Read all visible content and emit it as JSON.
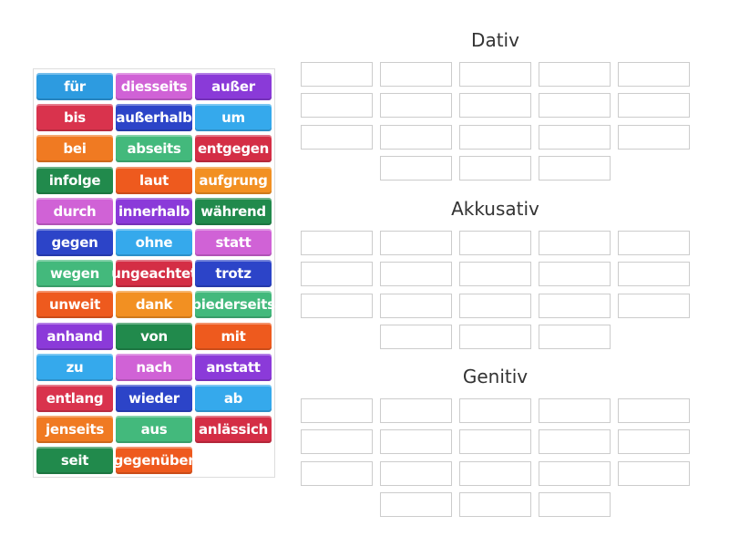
{
  "tiles": [
    {
      "word": "für",
      "color": "#2d9be0"
    },
    {
      "word": "diesseits",
      "color": "#d062d6"
    },
    {
      "word": "außer",
      "color": "#8a3ad8"
    },
    {
      "word": "bis",
      "color": "#d9334d"
    },
    {
      "word": "außerhalb",
      "color": "#2c44c8"
    },
    {
      "word": "um",
      "color": "#35a9ec"
    },
    {
      "word": "bei",
      "color": "#f07a22"
    },
    {
      "word": "abseits",
      "color": "#43b97c"
    },
    {
      "word": "entgegen",
      "color": "#d42e45"
    },
    {
      "word": "infolge",
      "color": "#218a4c"
    },
    {
      "word": "laut",
      "color": "#ee5a1e"
    },
    {
      "word": "aufgrung",
      "color": "#f29022"
    },
    {
      "word": "durch",
      "color": "#d062d6"
    },
    {
      "word": "innerhalb",
      "color": "#8b3ad9"
    },
    {
      "word": "während",
      "color": "#218a4c"
    },
    {
      "word": "gegen",
      "color": "#2c44c8"
    },
    {
      "word": "ohne",
      "color": "#35a9ec"
    },
    {
      "word": "statt",
      "color": "#d062d6"
    },
    {
      "word": "wegen",
      "color": "#43b97c"
    },
    {
      "word": "ungeachtet",
      "color": "#d42e45"
    },
    {
      "word": "trotz",
      "color": "#2c44c8"
    },
    {
      "word": "unweit",
      "color": "#ee5a1e"
    },
    {
      "word": "dank",
      "color": "#f29022"
    },
    {
      "word": "biederseits",
      "color": "#43b97c"
    },
    {
      "word": "anhand",
      "color": "#8b3ad9"
    },
    {
      "word": "von",
      "color": "#218a4c"
    },
    {
      "word": "mit",
      "color": "#ee5a1e"
    },
    {
      "word": "zu",
      "color": "#35a9ec"
    },
    {
      "word": "nach",
      "color": "#d062d6"
    },
    {
      "word": "anstatt",
      "color": "#8b3ad9"
    },
    {
      "word": "entlang",
      "color": "#d9334d"
    },
    {
      "word": "wieder",
      "color": "#2c44c8"
    },
    {
      "word": "ab",
      "color": "#35a9ec"
    },
    {
      "word": "jenseits",
      "color": "#f07a22"
    },
    {
      "word": "aus",
      "color": "#43b97c"
    },
    {
      "word": "anlässich",
      "color": "#d42e45"
    },
    {
      "word": "seit",
      "color": "#218a4c"
    },
    {
      "word": "gegenüber",
      "color": "#ee5a1e"
    }
  ],
  "groups": [
    {
      "title": "Dativ"
    },
    {
      "title": "Akkusativ"
    },
    {
      "title": "Genitiv"
    }
  ]
}
